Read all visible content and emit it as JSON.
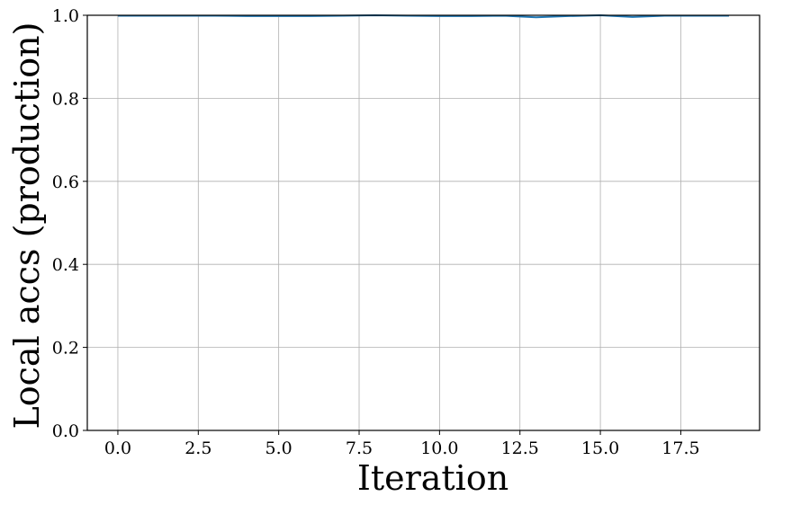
{
  "chart_data": {
    "type": "line",
    "title": "",
    "xlabel": "Iteration",
    "ylabel": "Local accs (production)",
    "xlim": [
      -0.95,
      19.95
    ],
    "ylim": [
      0.0,
      1.0
    ],
    "grid": true,
    "x_ticks": [
      0.0,
      2.5,
      5.0,
      7.5,
      10.0,
      12.5,
      15.0,
      17.5
    ],
    "x_tick_labels": [
      "0.0",
      "2.5",
      "5.0",
      "7.5",
      "10.0",
      "12.5",
      "15.0",
      "17.5"
    ],
    "y_ticks": [
      0.0,
      0.2,
      0.4,
      0.6,
      0.8,
      1.0
    ],
    "y_tick_labels": [
      "0.0",
      "0.2",
      "0.4",
      "0.6",
      "0.8",
      "1.0"
    ],
    "series": [
      {
        "name": "local_acc_production",
        "color": "#1f77b4",
        "x": [
          0,
          1,
          2,
          3,
          4,
          5,
          6,
          7,
          8,
          9,
          10,
          11,
          12,
          13,
          14,
          15,
          16,
          17,
          18,
          19
        ],
        "values": [
          0.999,
          0.999,
          0.999,
          0.999,
          0.998,
          0.998,
          0.998,
          0.999,
          1.0,
          0.999,
          0.998,
          0.998,
          0.999,
          0.995,
          0.998,
          1.0,
          0.996,
          0.999,
          0.999,
          0.999
        ]
      }
    ]
  }
}
